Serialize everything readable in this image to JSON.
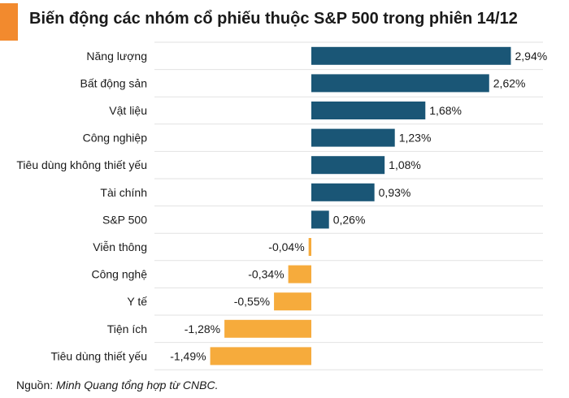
{
  "header": {
    "title": "Biến động các nhóm cổ phiếu thuộc S&P 500 trong phiên 14/12",
    "accent_color": "#f28a2e"
  },
  "footer": {
    "source_prefix": "Nguồn: ",
    "source_text": "Minh Quang tổng hợp từ CNBC."
  },
  "colors": {
    "positive": "#1a5676",
    "negative": "#f6ab3c",
    "grid": "#e2e2e2"
  },
  "chart_data": {
    "type": "bar",
    "orientation": "horizontal",
    "title": "Biến động các nhóm cổ phiếu thuộc S&P 500 trong phiên 14/12",
    "categories": [
      "Năng lượng",
      "Bất động sản",
      "Vật liệu",
      "Công nghiệp",
      "Tiêu dùng không thiết yếu",
      "Tài chính",
      "S&P 500",
      "Viễn thông",
      "Công nghệ",
      "Y tế",
      "Tiện ích",
      "Tiêu dùng thiết yếu"
    ],
    "values": [
      2.94,
      2.62,
      1.68,
      1.23,
      1.08,
      0.93,
      0.26,
      -0.04,
      -0.34,
      -0.55,
      -1.28,
      -1.49
    ],
    "value_labels": [
      "2,94%",
      "2,62%",
      "1,68%",
      "1,23%",
      "1,08%",
      "0,93%",
      "0,26%",
      "-0,04%",
      "-0,34%",
      "-0,55%",
      "-1,28%",
      "-1,49%"
    ],
    "unit": "%",
    "xlim": [
      -1.6,
      3.2
    ],
    "grid": "horizontal-lines",
    "legend": "none"
  }
}
